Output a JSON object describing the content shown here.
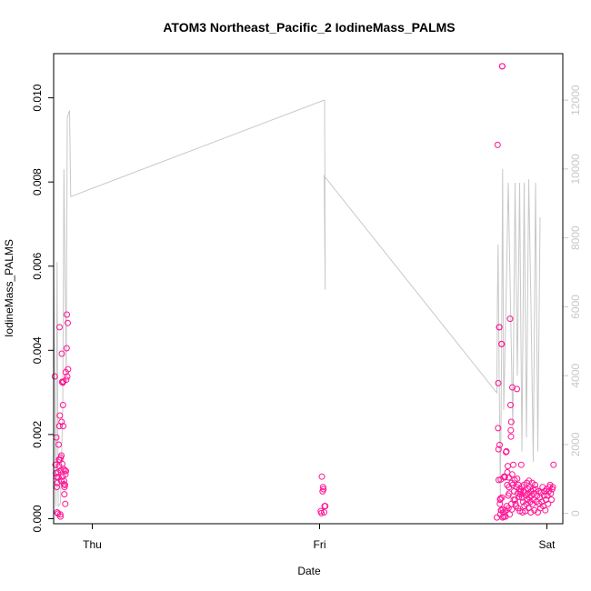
{
  "chart_data": {
    "type": "scatter",
    "title": "ATOM3 Northeast_Pacific_2 IodineMass_PALMS",
    "xlabel": "Date",
    "ylabel": "IodineMass_PALMS",
    "x_unit": "days (Thu = 0)",
    "xlim": [
      -0.17,
      2.07
    ],
    "ylim": [
      -0.00012,
      0.01105
    ],
    "x_ticks": [
      {
        "value": 0,
        "label": "Thu"
      },
      {
        "value": 1,
        "label": "Fri"
      },
      {
        "value": 2,
        "label": "Sat"
      }
    ],
    "y_ticks": [
      0.0,
      0.002,
      0.004,
      0.006,
      0.008,
      0.01
    ],
    "y_tick_labels": [
      "0.000",
      "0.002",
      "0.004",
      "0.006",
      "0.008",
      "0.010"
    ],
    "y2_ticks": [
      0,
      2000,
      4000,
      6000,
      8000,
      10000,
      12000
    ],
    "y2lim": [
      -300,
      13350
    ],
    "grid": false,
    "colors": {
      "points": "#ff1493",
      "altitude_line": "#c8c8c8",
      "axis": "#000000",
      "right_axis": "#c8c8c8"
    },
    "series": [
      {
        "kind": "points",
        "values": [
          [
            -0.165,
            0.00338
          ],
          [
            -0.162,
            0.00128
          ],
          [
            -0.16,
            0.00108
          ],
          [
            -0.158,
            0.00193
          ],
          [
            -0.157,
            0.00099
          ],
          [
            -0.156,
            0.00075
          ],
          [
            -0.155,
            0.00015
          ],
          [
            -0.154,
            0.00085
          ],
          [
            -0.152,
            0.0011
          ],
          [
            -0.151,
            0.00012
          ],
          [
            -0.149,
            0.00098
          ],
          [
            -0.148,
            0.00176
          ],
          [
            -0.147,
            0.0014
          ],
          [
            -0.146,
            0.00125
          ],
          [
            -0.145,
            0.0022
          ],
          [
            -0.144,
            0.00455
          ],
          [
            -0.143,
            0.00245
          ],
          [
            -0.142,
            0.0014
          ],
          [
            -0.141,
            0.0001
          ],
          [
            -0.14,
            5e-05
          ],
          [
            -0.139,
            0.00145
          ],
          [
            -0.138,
            0.00115
          ],
          [
            -0.137,
            0.0009
          ],
          [
            -0.136,
            0.0015
          ],
          [
            -0.135,
            0.0023
          ],
          [
            -0.134,
            0.00392
          ],
          [
            -0.133,
            0.00325
          ],
          [
            -0.132,
            0.0013
          ],
          [
            -0.131,
            0.001
          ],
          [
            -0.13,
            0.00323
          ],
          [
            -0.129,
            0.0027
          ],
          [
            -0.128,
            0.0022
          ],
          [
            -0.127,
            0.00326
          ],
          [
            -0.126,
            0.00118
          ],
          [
            -0.125,
            0.00082
          ],
          [
            -0.124,
            0.0009
          ],
          [
            -0.123,
            0.00058
          ],
          [
            -0.122,
            0.00075
          ],
          [
            -0.121,
            0.00115
          ],
          [
            -0.12,
            0.0008
          ],
          [
            -0.119,
            0.00035
          ],
          [
            -0.118,
            0.00105
          ],
          [
            -0.117,
            0.00348
          ],
          [
            -0.116,
            0.00113
          ],
          [
            -0.115,
            0.0033
          ],
          [
            -0.113,
            0.00405
          ],
          [
            -0.112,
            0.00485
          ],
          [
            -0.11,
            0.00338
          ],
          [
            -0.108,
            0.00465
          ],
          [
            -0.107,
            0.00355
          ],
          [
            1.005,
            0.00018
          ],
          [
            1.008,
            0.00013
          ],
          [
            1.01,
            0.001
          ],
          [
            1.013,
            0.00065
          ],
          [
            1.015,
            0.00075
          ],
          [
            1.017,
            0.0007
          ],
          [
            1.02,
            0.00015
          ],
          [
            1.022,
            0.0003
          ],
          [
            1.025,
            0.0003
          ],
          [
            1.78,
            3e-05
          ],
          [
            1.783,
            0.00888
          ],
          [
            1.785,
            0.00215
          ],
          [
            1.786,
            0.00322
          ],
          [
            1.787,
            0.00165
          ],
          [
            1.788,
            0.00092
          ],
          [
            1.79,
            0.00455
          ],
          [
            1.791,
            0.00455
          ],
          [
            1.792,
            0.00175
          ],
          [
            1.793,
            0.00035
          ],
          [
            1.794,
            0.00045
          ],
          [
            1.795,
            0.0001
          ],
          [
            1.796,
            0.00048
          ],
          [
            1.797,
            0.00093
          ],
          [
            1.798,
            0.0002
          ],
          [
            1.799,
            0.0002
          ],
          [
            1.8,
            0.00415
          ],
          [
            1.801,
            0.00415
          ],
          [
            1.802,
            0.0005
          ],
          [
            1.803,
            0.01075
          ],
          [
            1.804,
            0.01075
          ],
          [
            1.805,
            3e-05
          ],
          [
            1.806,
            0.00022
          ],
          [
            1.808,
            0.00015
          ],
          [
            1.81,
            5e-05
          ],
          [
            1.812,
            0.001
          ],
          [
            1.814,
            0.00098
          ],
          [
            1.815,
            0.001
          ],
          [
            1.817,
            0.0002
          ],
          [
            1.818,
            5e-05
          ],
          [
            1.82,
            0.00158
          ],
          [
            1.822,
            0.0016
          ],
          [
            1.823,
            0.0003
          ],
          [
            1.825,
            0.0008
          ],
          [
            1.826,
            0.0011
          ],
          [
            1.828,
            0.00125
          ],
          [
            1.83,
            0.00055
          ],
          [
            1.831,
            0.00025
          ],
          [
            1.832,
            0.00098
          ],
          [
            1.833,
            0.00075
          ],
          [
            1.834,
            0.0006
          ],
          [
            1.836,
            0.0001
          ],
          [
            1.838,
            0.00475
          ],
          [
            1.84,
            0.0027
          ],
          [
            1.841,
            0.0021
          ],
          [
            1.842,
            0.00195
          ],
          [
            1.843,
            0.0023
          ],
          [
            1.844,
            0.00035
          ],
          [
            1.845,
            0.00085
          ],
          [
            1.846,
            0.00022
          ],
          [
            1.847,
            0.00105
          ],
          [
            1.848,
            0.00312
          ],
          [
            1.85,
            0.0008
          ],
          [
            1.852,
            0.00128
          ],
          [
            1.854,
            0.00045
          ],
          [
            1.856,
            0.00065
          ],
          [
            1.858,
            0.00092
          ],
          [
            1.86,
            0.00045
          ],
          [
            1.862,
            0.00035
          ],
          [
            1.864,
            0.0003
          ],
          [
            1.866,
            0.00075
          ],
          [
            1.868,
            0.00308
          ],
          [
            1.869,
            0.00095
          ],
          [
            1.871,
            0.0006
          ],
          [
            1.873,
            0.00025
          ],
          [
            1.875,
            0.0008
          ],
          [
            1.877,
            0.00052
          ],
          [
            1.879,
            0.0007
          ],
          [
            1.881,
            0.00018
          ],
          [
            1.883,
            0.00058
          ],
          [
            1.885,
            0.00065
          ],
          [
            1.887,
            0.00128
          ],
          [
            1.889,
            0.00075
          ],
          [
            1.891,
            0.0005
          ],
          [
            1.893,
            0.00015
          ],
          [
            1.895,
            0.0004
          ],
          [
            1.897,
            0.00065
          ],
          [
            1.899,
            0.0008
          ],
          [
            1.901,
            0.0003
          ],
          [
            1.903,
            0.00062
          ],
          [
            1.905,
            0.00018
          ],
          [
            1.907,
            0.00055
          ],
          [
            1.909,
            0.00035
          ],
          [
            1.911,
            0.00085
          ],
          [
            1.913,
            0.00045
          ],
          [
            1.915,
            0.0006
          ],
          [
            1.917,
            0.0007
          ],
          [
            1.919,
            0.00025
          ],
          [
            1.921,
            0.0009
          ],
          [
            1.923,
            0.0005
          ],
          [
            1.925,
            0.00075
          ],
          [
            1.927,
            0.0004
          ],
          [
            1.929,
            0.00015
          ],
          [
            1.931,
            0.00065
          ],
          [
            1.933,
            0.00055
          ],
          [
            1.935,
            0.00085
          ],
          [
            1.937,
            0.00035
          ],
          [
            1.939,
            0.0007
          ],
          [
            1.941,
            0.00045
          ],
          [
            1.943,
            0.0006
          ],
          [
            1.945,
            0.0002
          ],
          [
            1.948,
            0.0008
          ],
          [
            1.951,
            0.0007
          ],
          [
            1.954,
            0.0004
          ],
          [
            1.957,
            0.00055
          ],
          [
            1.96,
            0.00015
          ],
          [
            1.963,
            0.00065
          ],
          [
            1.966,
            0.00035
          ],
          [
            1.969,
            0.0005
          ],
          [
            1.972,
            0.00025
          ],
          [
            1.975,
            0.00062
          ],
          [
            1.978,
            0.0004
          ],
          [
            1.981,
            0.00075
          ],
          [
            1.984,
            0.0003
          ],
          [
            1.987,
            0.00055
          ],
          [
            1.99,
            0.00065
          ],
          [
            1.993,
            0.0002
          ],
          [
            1.996,
            0.00045
          ],
          [
            1.999,
            0.0007
          ],
          [
            2.002,
            0.00055
          ],
          [
            2.005,
            0.00035
          ],
          [
            2.008,
            0.00065
          ],
          [
            2.011,
            0.00075
          ],
          [
            2.014,
            0.0008
          ],
          [
            2.017,
            0.0006
          ],
          [
            2.02,
            0.00045
          ],
          [
            2.023,
            0.0007
          ],
          [
            2.026,
            0.00075
          ],
          [
            2.029,
            0.00128
          ]
        ]
      },
      {
        "kind": "altitude-line",
        "axis": "right",
        "values": [
          [
            -0.17,
            7200
          ],
          [
            -0.16,
            200
          ],
          [
            -0.155,
            7300
          ],
          [
            -0.15,
            200
          ],
          [
            -0.14,
            300
          ],
          [
            -0.13,
            3000
          ],
          [
            -0.125,
            10000
          ],
          [
            -0.12,
            7000
          ],
          [
            -0.115,
            4000
          ],
          [
            -0.11,
            11500
          ],
          [
            -0.1,
            11700
          ],
          [
            -0.095,
            9200
          ],
          [
            1.02,
            12000
          ],
          [
            1.022,
            12000
          ],
          [
            1.025,
            6500
          ],
          [
            1.02,
            9800
          ],
          [
            1.78,
            3500
          ],
          [
            1.782,
            6000
          ],
          [
            1.785,
            7800
          ],
          [
            1.79,
            4000
          ],
          [
            1.795,
            500
          ],
          [
            1.8,
            4000
          ],
          [
            1.805,
            10000
          ],
          [
            1.81,
            3000
          ],
          [
            1.82,
            6000
          ],
          [
            1.83,
            9600
          ],
          [
            1.84,
            6000
          ],
          [
            1.85,
            2500
          ],
          [
            1.86,
            9600
          ],
          [
            1.87,
            4000
          ],
          [
            1.88,
            9600
          ],
          [
            1.89,
            1800
          ],
          [
            1.9,
            9600
          ],
          [
            1.91,
            2200
          ],
          [
            1.92,
            9700
          ],
          [
            1.93,
            6000
          ],
          [
            1.94,
            1500
          ],
          [
            1.95,
            9600
          ],
          [
            1.96,
            1800
          ],
          [
            1.97,
            8600
          ]
        ]
      }
    ]
  }
}
